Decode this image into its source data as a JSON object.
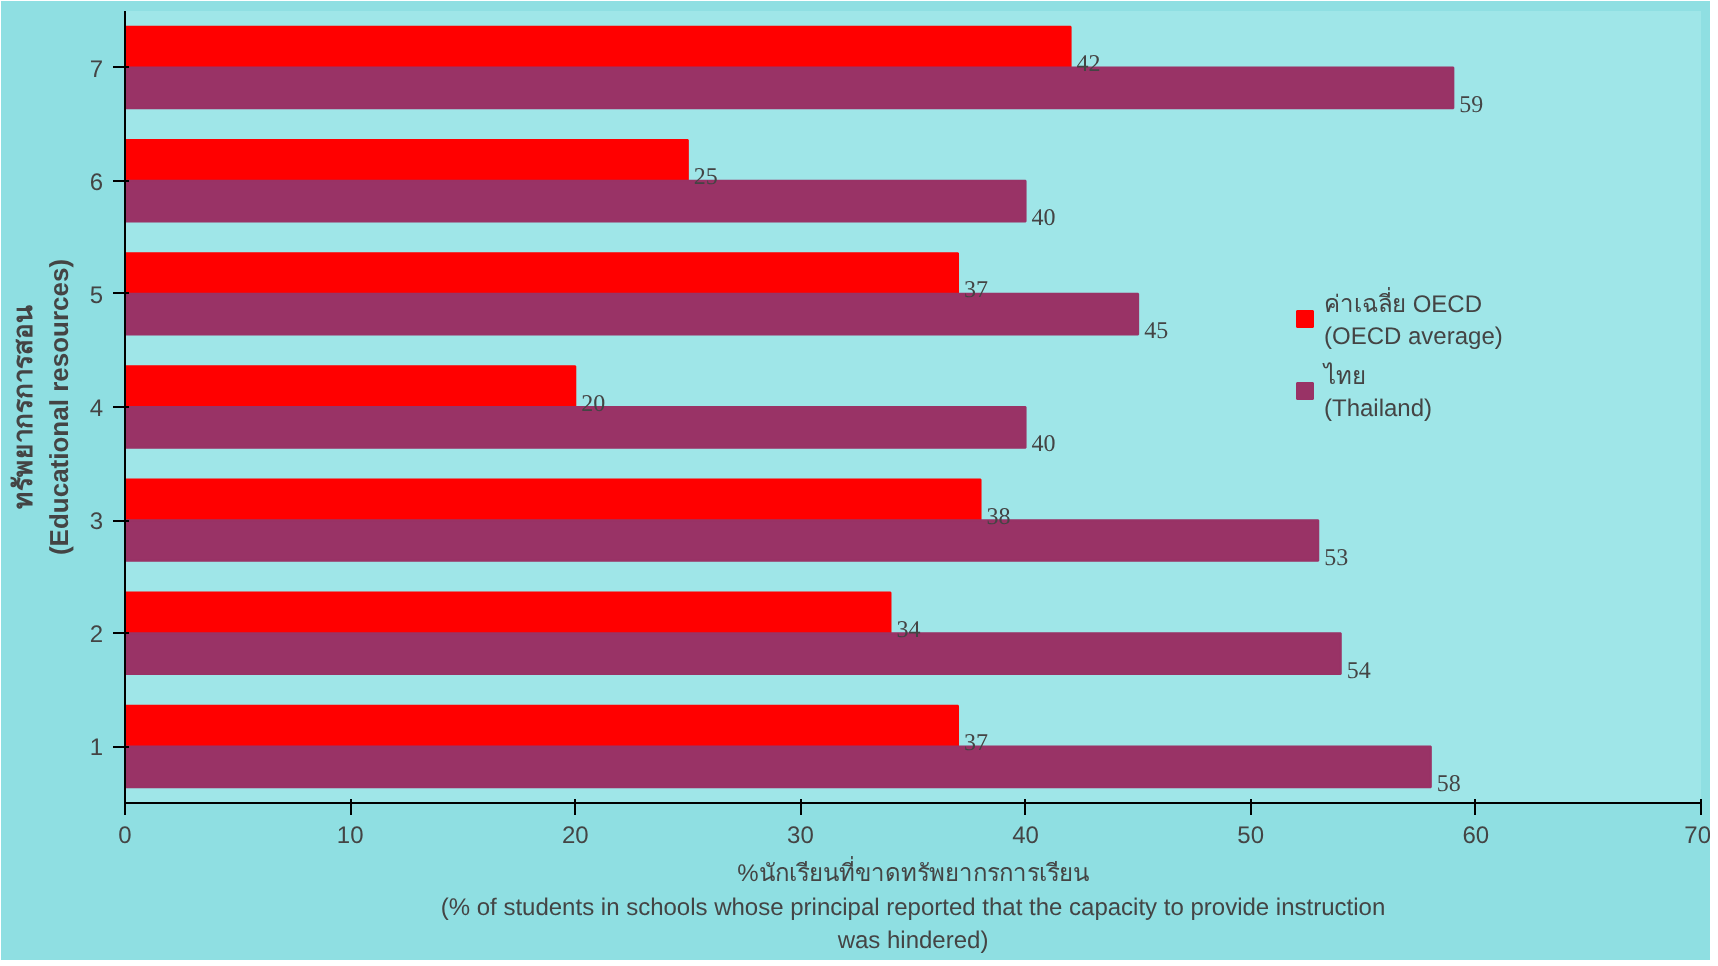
{
  "chart_data": {
    "type": "bar",
    "orientation": "horizontal",
    "categories": [
      "7",
      "6",
      "5",
      "4",
      "3",
      "2",
      "1"
    ],
    "series": [
      {
        "name": "ค่าเฉลี่ย OECD\n(OECD average)",
        "color": "#ff0000",
        "values": [
          42,
          25,
          37,
          20,
          38,
          34,
          37
        ]
      },
      {
        "name": "ไทย\n(Thailand)",
        "color": "#993366",
        "values": [
          59,
          40,
          45,
          40,
          53,
          54,
          58
        ]
      }
    ],
    "xlim": [
      0,
      70
    ],
    "xticks": [
      0,
      10,
      20,
      30,
      40,
      50,
      60,
      70
    ],
    "xlabel": "%นักเรียนที่ขาดทรัพยากรการเรียน\n(% of students in schools whose principal reported that the capacity to provide instruction\nwas hindered)",
    "ylabel": "ทรัพยากรการสอน\n(Educational resources)",
    "data_labels": true,
    "legend": "right",
    "grid": false
  }
}
